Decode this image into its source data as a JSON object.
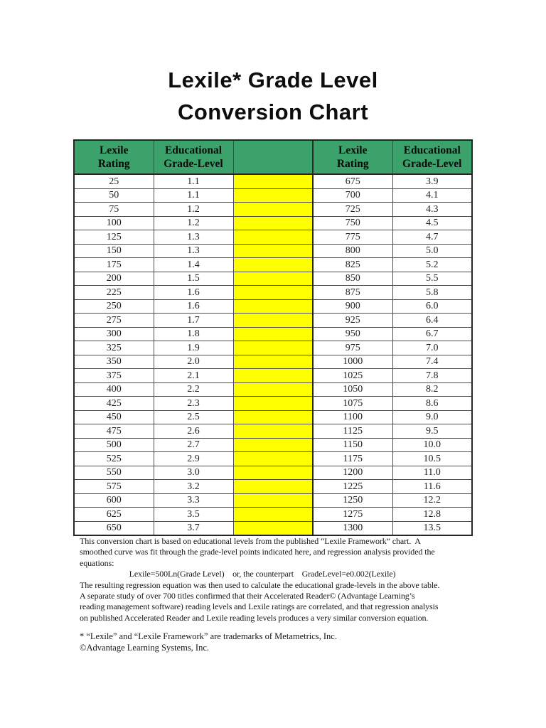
{
  "title": {
    "line1": "Lexile* Grade Level",
    "line2": "Conversion Chart"
  },
  "table": {
    "headers": [
      "Lexile\nRating",
      "Educational\nGrade-Level",
      "",
      "Lexile\nRating",
      "Educational\nGrade-Level"
    ],
    "rows": [
      [
        "25",
        "1.1",
        "675",
        "3.9"
      ],
      [
        "50",
        "1.1",
        "700",
        "4.1"
      ],
      [
        "75",
        "1.2",
        "725",
        "4.3"
      ],
      [
        "100",
        "1.2",
        "750",
        "4.5"
      ],
      [
        "125",
        "1.3",
        "775",
        "4.7"
      ],
      [
        "150",
        "1.3",
        "800",
        "5.0"
      ],
      [
        "175",
        "1.4",
        "825",
        "5.2"
      ],
      [
        "200",
        "1.5",
        "850",
        "5.5"
      ],
      [
        "225",
        "1.6",
        "875",
        "5.8"
      ],
      [
        "250",
        "1.6",
        "900",
        "6.0"
      ],
      [
        "275",
        "1.7",
        "925",
        "6.4"
      ],
      [
        "300",
        "1.8",
        "950",
        "6.7"
      ],
      [
        "325",
        "1.9",
        "975",
        "7.0"
      ],
      [
        "350",
        "2.0",
        "1000",
        "7.4"
      ],
      [
        "375",
        "2.1",
        "1025",
        "7.8"
      ],
      [
        "400",
        "2.2",
        "1050",
        "8.2"
      ],
      [
        "425",
        "2.3",
        "1075",
        "8.6"
      ],
      [
        "450",
        "2.5",
        "1100",
        "9.0"
      ],
      [
        "475",
        "2.6",
        "1125",
        "9.5"
      ],
      [
        "500",
        "2.7",
        "1150",
        "10.0"
      ],
      [
        "525",
        "2.9",
        "1175",
        "10.5"
      ],
      [
        "550",
        "3.0",
        "1200",
        "11.0"
      ],
      [
        "575",
        "3.2",
        "1225",
        "11.6"
      ],
      [
        "600",
        "3.3",
        "1250",
        "12.2"
      ],
      [
        "625",
        "3.5",
        "1275",
        "12.8"
      ],
      [
        "650",
        "3.7",
        "1300",
        "13.5"
      ]
    ]
  },
  "paragraph": {
    "text": "This conversion chart is based on educational levels from the published “Lexile Framework” chart.  A\nsmoothed curve was fit through the grade-level points indicated here, and regression analysis provided the\nequations:\n                        Lexile=500Ln(Grade Level)    or, the counterpart    GradeLevel=e0.002(Lexile)\nThe resulting regression equation was then used to calculate the educational grade-levels in the above table.\nA separate study of over 700 titles confirmed that their Accelerated Reader© (Advantage Learning’s\nreading management software) reading levels and Lexile ratings are correlated, and that regression analysis\non published Accelerated Reader and Lexile reading levels produces a very similar conversion equation."
  },
  "footnotes": {
    "text": "* “Lexile” and “Lexile Framework” are trademarks of Metametrics, Inc.\n©Advantage Learning Systems, Inc."
  },
  "colors": {
    "header_green": "#3BA26B",
    "highlight_yellow": "#FFFF00",
    "border_dark": "#262626",
    "text": "#1A1A1A"
  }
}
